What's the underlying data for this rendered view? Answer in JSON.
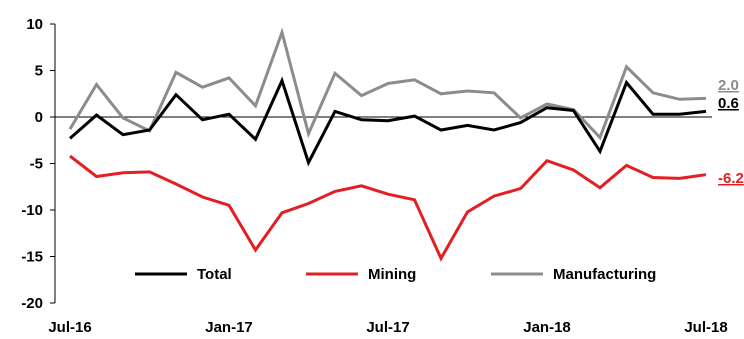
{
  "chart_data": {
    "type": "line",
    "title": "",
    "xlabel": "",
    "ylabel": "",
    "ylim": [
      -20,
      10
    ],
    "yticks": [
      "10",
      "5",
      "0",
      "-5",
      "-10",
      "-15",
      "-20"
    ],
    "yticks_values": [
      10,
      5,
      0,
      -5,
      -10,
      -15,
      -20
    ],
    "x_tick_labels": [
      "Jul-16",
      "Jan-17",
      "Jul-17",
      "Jan-18",
      "Jul-18"
    ],
    "x_tick_index": [
      0,
      6,
      12,
      18,
      24
    ],
    "categories": [
      "Jul-16",
      "Aug-16",
      "Sep-16",
      "Oct-16",
      "Nov-16",
      "Dec-16",
      "Jan-17",
      "Feb-17",
      "Mar-17",
      "Apr-17",
      "May-17",
      "Jun-17",
      "Jul-17",
      "Aug-17",
      "Sep-17",
      "Oct-17",
      "Nov-17",
      "Dec-17",
      "Jan-18",
      "Feb-18",
      "Mar-18",
      "Apr-18",
      "May-18",
      "Jun-18",
      "Jul-18"
    ],
    "legend_position": "bottom",
    "grid": false,
    "series": [
      {
        "name": "Total",
        "color": "#000000",
        "end_label": "0.6",
        "values": [
          -2.3,
          0.2,
          -1.9,
          -1.4,
          2.4,
          -0.3,
          0.3,
          -2.4,
          3.9,
          -4.9,
          0.6,
          -0.3,
          -0.4,
          0.1,
          -1.4,
          -0.9,
          -1.4,
          -0.6,
          1.0,
          0.7,
          -3.7,
          3.7,
          0.3,
          0.3,
          0.6
        ]
      },
      {
        "name": "Mining",
        "color": "#e31e24",
        "end_label": "-6.2",
        "values": [
          -4.2,
          -6.4,
          -6.0,
          -5.9,
          -7.2,
          -8.6,
          -9.5,
          -14.3,
          -10.3,
          -9.3,
          -8.0,
          -7.4,
          -8.3,
          -8.9,
          -15.2,
          -10.2,
          -8.5,
          -7.7,
          -4.7,
          -5.7,
          -7.6,
          -5.2,
          -6.5,
          -6.6,
          -6.2
        ]
      },
      {
        "name": "Manufacturing",
        "color": "#8c8c8c",
        "end_label": "2.0",
        "values": [
          -1.3,
          3.5,
          -0.1,
          -1.5,
          4.8,
          3.2,
          4.2,
          1.2,
          9.1,
          -1.8,
          4.7,
          2.3,
          3.6,
          4.0,
          2.5,
          2.8,
          2.6,
          -0.1,
          1.4,
          0.8,
          -2.2,
          5.4,
          2.6,
          1.9,
          2.0
        ]
      }
    ]
  }
}
